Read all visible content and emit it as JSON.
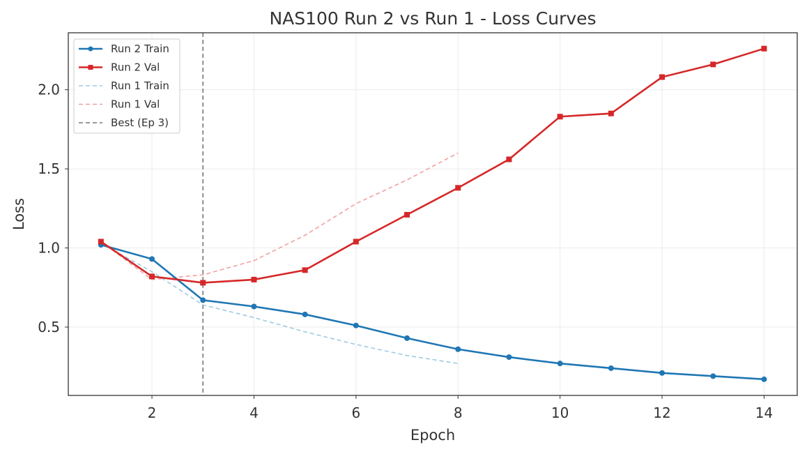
{
  "chart_data": {
    "type": "line",
    "title": "NAS100 Run 2 vs Run 1 - Loss Curves",
    "xlabel": "Epoch",
    "ylabel": "Loss",
    "xlim": [
      0.36,
      14.65
    ],
    "ylim": [
      0.068,
      2.36
    ],
    "xticks": [
      2,
      4,
      6,
      8,
      10,
      12,
      14
    ],
    "yticks": [
      0.5,
      1.0,
      1.5,
      2.0
    ],
    "ytick_labels": [
      "0.5",
      "1.0",
      "1.5",
      "2.0"
    ],
    "grid": true,
    "legend_placement": "top-left",
    "series": [
      {
        "name": "Run 2 Train",
        "color": "#1f77b4",
        "style": "solid",
        "marker": "circle",
        "x": [
          1,
          2,
          3,
          4,
          5,
          6,
          7,
          8,
          9,
          10,
          11,
          12,
          13,
          14
        ],
        "y": [
          1.02,
          0.93,
          0.67,
          0.63,
          0.58,
          0.51,
          0.43,
          0.36,
          0.31,
          0.27,
          0.24,
          0.21,
          0.19,
          0.17
        ]
      },
      {
        "name": "Run 2 Val",
        "color": "#d62728",
        "style": "solid",
        "marker": "square",
        "x": [
          1,
          2,
          3,
          4,
          5,
          6,
          7,
          8,
          9,
          10,
          11,
          12,
          13,
          14
        ],
        "y": [
          1.04,
          0.82,
          0.78,
          0.8,
          0.86,
          1.04,
          1.21,
          1.38,
          1.56,
          1.83,
          1.85,
          2.08,
          2.16,
          2.26
        ]
      },
      {
        "name": "Run 1 Train",
        "color": "#9ecae1",
        "style": "dashed",
        "marker": "none",
        "x": [
          1,
          2,
          3,
          4,
          5,
          6,
          7,
          8
        ],
        "y": [
          1.03,
          0.85,
          0.64,
          0.56,
          0.47,
          0.39,
          0.32,
          0.27
        ]
      },
      {
        "name": "Run 1 Val",
        "color": "#f0a0a0",
        "style": "dashed",
        "marker": "none",
        "x": [
          1,
          2,
          3,
          4,
          5,
          6,
          7,
          8
        ],
        "y": [
          1.04,
          0.8,
          0.83,
          0.92,
          1.08,
          1.28,
          1.43,
          1.6
        ]
      }
    ],
    "vlines": [
      {
        "name": "Best (Ep 3)",
        "x": 3,
        "color": "#777777",
        "style": "dashed"
      }
    ]
  }
}
